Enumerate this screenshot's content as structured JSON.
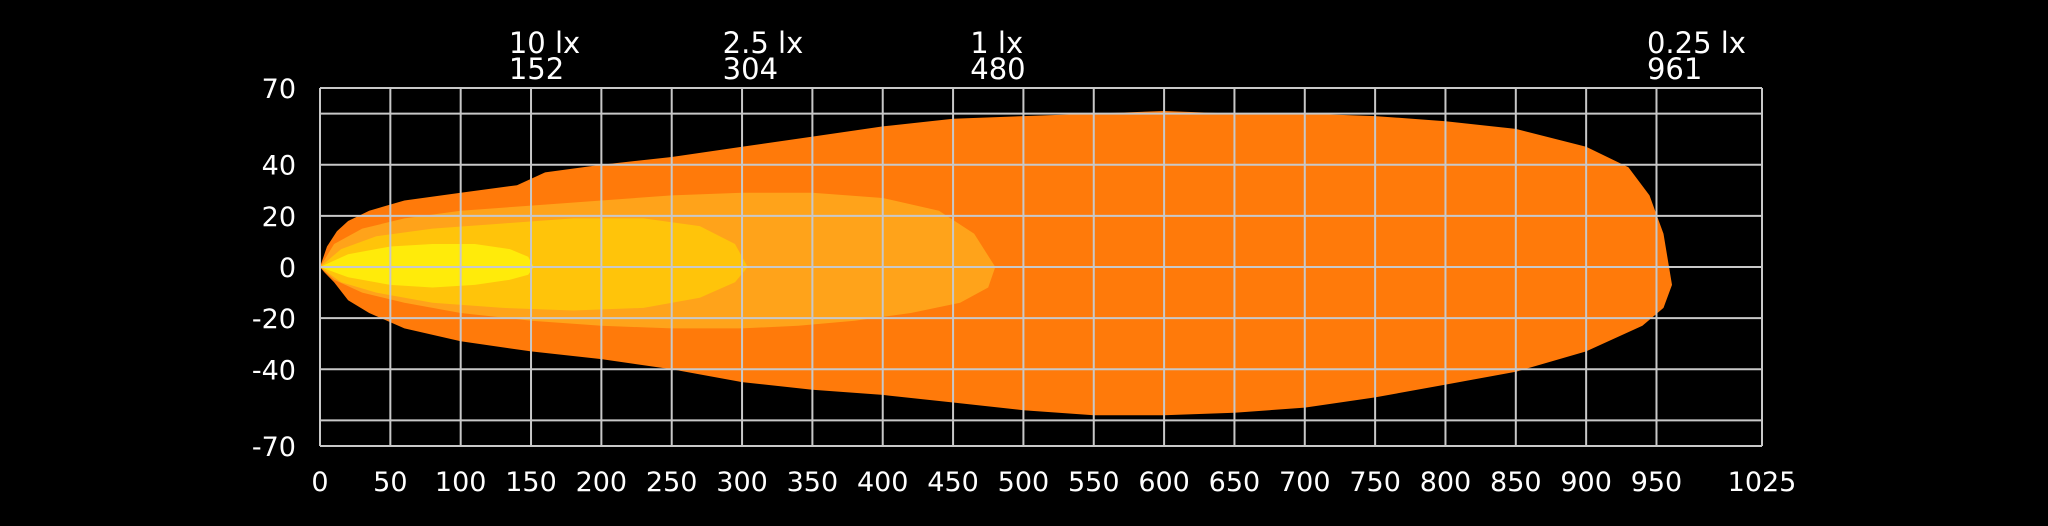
{
  "chart_data": {
    "type": "area",
    "title": "",
    "xlabel": "",
    "ylabel": "",
    "xlim": [
      0,
      1025
    ],
    "ylim": [
      -70,
      70
    ],
    "x_ticks": [
      0,
      50,
      100,
      150,
      200,
      250,
      300,
      350,
      400,
      450,
      500,
      550,
      600,
      650,
      700,
      750,
      800,
      850,
      900,
      950,
      1025
    ],
    "y_tick_labels": [
      70,
      40,
      20,
      0,
      -20,
      -40,
      -70
    ],
    "y_gridlines": [
      70,
      60,
      40,
      20,
      0,
      -20,
      -40,
      -60,
      -70
    ],
    "grid": true,
    "series": [
      {
        "label": "0.25 lx",
        "distance": 961,
        "color": "#ff7a0a",
        "contour": [
          [
            0,
            0
          ],
          [
            5,
            8
          ],
          [
            12,
            14
          ],
          [
            20,
            18
          ],
          [
            35,
            22
          ],
          [
            60,
            26
          ],
          [
            100,
            29
          ],
          [
            140,
            32
          ],
          [
            160,
            37
          ],
          [
            200,
            40
          ],
          [
            250,
            43
          ],
          [
            300,
            47
          ],
          [
            350,
            51
          ],
          [
            400,
            55
          ],
          [
            450,
            58
          ],
          [
            500,
            59
          ],
          [
            550,
            60
          ],
          [
            600,
            61
          ],
          [
            650,
            60
          ],
          [
            700,
            60
          ],
          [
            750,
            59
          ],
          [
            800,
            57
          ],
          [
            850,
            54
          ],
          [
            900,
            47
          ],
          [
            930,
            39
          ],
          [
            945,
            28
          ],
          [
            955,
            13
          ],
          [
            961,
            -7
          ],
          [
            955,
            -16
          ],
          [
            940,
            -23
          ],
          [
            900,
            -33
          ],
          [
            850,
            -41
          ],
          [
            800,
            -46
          ],
          [
            750,
            -51
          ],
          [
            700,
            -55
          ],
          [
            650,
            -57
          ],
          [
            600,
            -58
          ],
          [
            550,
            -58
          ],
          [
            500,
            -56
          ],
          [
            450,
            -53
          ],
          [
            400,
            -50
          ],
          [
            350,
            -48
          ],
          [
            300,
            -45
          ],
          [
            250,
            -40
          ],
          [
            200,
            -36
          ],
          [
            150,
            -33
          ],
          [
            100,
            -29
          ],
          [
            60,
            -24
          ],
          [
            35,
            -18
          ],
          [
            20,
            -13
          ],
          [
            10,
            -6
          ],
          [
            3,
            -2
          ]
        ]
      },
      {
        "label": "1 lx",
        "distance": 480,
        "color": "#ffa31a",
        "contour": [
          [
            0,
            0
          ],
          [
            10,
            9
          ],
          [
            30,
            15
          ],
          [
            60,
            19
          ],
          [
            100,
            22
          ],
          [
            150,
            24
          ],
          [
            200,
            26
          ],
          [
            250,
            28
          ],
          [
            300,
            29
          ],
          [
            350,
            29
          ],
          [
            400,
            27
          ],
          [
            440,
            22
          ],
          [
            465,
            13
          ],
          [
            480,
            0
          ],
          [
            475,
            -8
          ],
          [
            455,
            -14
          ],
          [
            420,
            -18
          ],
          [
            380,
            -21
          ],
          [
            340,
            -23
          ],
          [
            300,
            -24
          ],
          [
            250,
            -24
          ],
          [
            200,
            -23
          ],
          [
            150,
            -21
          ],
          [
            100,
            -18
          ],
          [
            60,
            -14
          ],
          [
            30,
            -10
          ],
          [
            10,
            -5
          ]
        ]
      },
      {
        "label": "2.5 lx",
        "distance": 304,
        "color": "#ffc40a",
        "contour": [
          [
            0,
            0
          ],
          [
            15,
            7
          ],
          [
            40,
            12
          ],
          [
            80,
            15
          ],
          [
            130,
            17
          ],
          [
            180,
            19
          ],
          [
            230,
            19
          ],
          [
            270,
            16
          ],
          [
            295,
            9
          ],
          [
            304,
            0
          ],
          [
            295,
            -6
          ],
          [
            270,
            -12
          ],
          [
            230,
            -16
          ],
          [
            180,
            -17
          ],
          [
            130,
            -16
          ],
          [
            80,
            -14
          ],
          [
            40,
            -10
          ],
          [
            15,
            -6
          ]
        ]
      },
      {
        "label": "10 lx",
        "distance": 152,
        "color": "#ffeb0a",
        "contour": [
          [
            0,
            0
          ],
          [
            20,
            5
          ],
          [
            50,
            8
          ],
          [
            80,
            9
          ],
          [
            110,
            9
          ],
          [
            135,
            7
          ],
          [
            148,
            4
          ],
          [
            152,
            0
          ],
          [
            148,
            -3
          ],
          [
            135,
            -5
          ],
          [
            110,
            -7
          ],
          [
            80,
            -8
          ],
          [
            50,
            -7
          ],
          [
            20,
            -4
          ]
        ]
      }
    ]
  },
  "colors": {
    "background": "#000000",
    "grid": "#c8c8c8",
    "text": "#ffffff"
  }
}
